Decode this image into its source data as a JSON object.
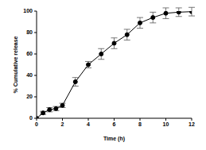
{
  "chart_data": {
    "type": "line",
    "x_label": "Time (h)",
    "y_label": "% Cumulative release",
    "x": [
      0,
      0.5,
      1,
      1.5,
      2,
      3,
      4,
      5,
      6,
      7,
      8,
      9,
      10,
      11,
      12
    ],
    "series": [
      {
        "name": "release",
        "color": "#000000",
        "marker": "circle",
        "values": [
          0,
          5,
          8,
          9,
          12,
          34,
          50,
          60,
          70,
          78,
          89,
          94,
          98,
          99,
          99.5
        ],
        "errors": [
          0,
          1.5,
          2,
          2,
          2,
          4,
          3,
          5,
          5,
          5,
          5,
          5,
          5,
          4,
          4
        ]
      }
    ],
    "xlim": [
      0,
      12
    ],
    "xticks": [
      0,
      2,
      4,
      6,
      8,
      10,
      12
    ],
    "ylim": [
      0,
      100
    ],
    "yticks": [
      0,
      20,
      40,
      60,
      80,
      100
    ],
    "grid": false
  }
}
